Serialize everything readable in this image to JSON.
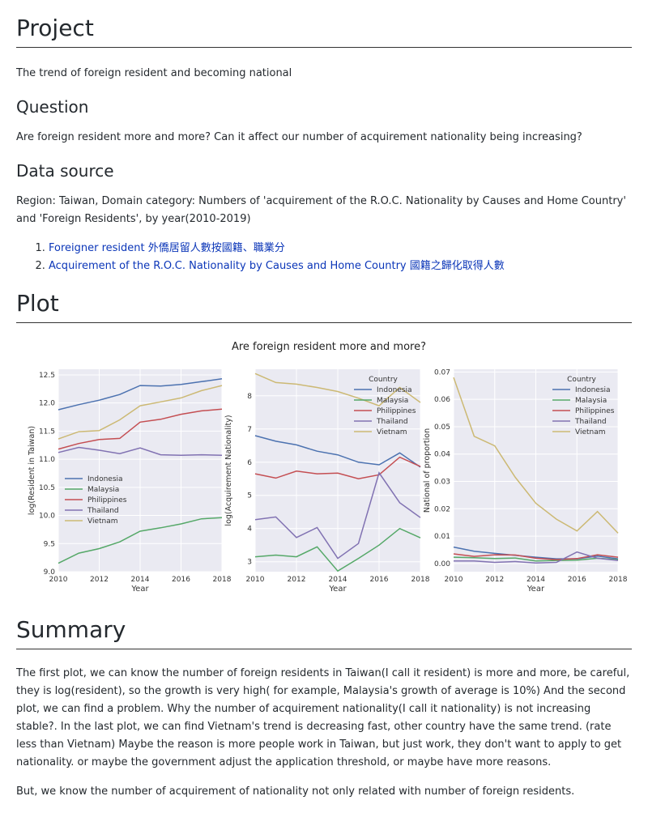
{
  "project": {
    "heading": "Project",
    "description": "The trend of foreign resident and becoming national"
  },
  "question": {
    "heading": "Question",
    "text": "Are foreign resident more and more? Can it affect our number of acquirement nationality being increasing?"
  },
  "data_source": {
    "heading": "Data source",
    "text": "Region: Taiwan, Domain category: Numbers of 'acquirement of the R.O.C. Nationality by Causes and Home Country' and 'Foreign Residents', by year(2010-2019)",
    "links": [
      {
        "label": "Foreigner resident 外僑居留人數按國籍、職業分"
      },
      {
        "label": "Acquirement of the R.O.C. Nationality by Causes and Home Country 國籍之歸化取得人數"
      }
    ]
  },
  "plot": {
    "heading": "Plot",
    "suptitle": "Are foreign resident more and more?"
  },
  "summary": {
    "heading": "Summary",
    "paragraph1": "The first plot, we can know the number of foreign residents in Taiwan(I call it resident) is more and more, be careful, they is log(resident), so the growth is very high( for example, Malaysia's growth of average is 10%) And the second plot, we can find a problem. Why the number of acquirement nationality(I call it nationality) is not increasing stable?. In the last plot, we can find Vietnam's trend is decreasing fast, other country have the same trend. (rate less than Vietnam) Maybe the reason is more people work in Taiwan, but just work, they don't want to apply to get nationality. or maybe the government adjust the application threshold, or maybe have more reasons.",
    "paragraph2": "But, we know the number of acquirement of nationality not only related with number of foreign residents."
  },
  "colors": {
    "Indonesia": "#4c72b0",
    "Malaysia": "#55a868",
    "Philippines": "#c44e52",
    "Thailand": "#8172b2",
    "Vietnam": "#ccb974",
    "plot_bg": "#eaeaf2"
  },
  "chart_data": [
    {
      "type": "line",
      "xlabel": "Year",
      "ylabel": "log(Resident in Taiwan)",
      "xlim": [
        2010,
        2018
      ],
      "ylim": [
        9.0,
        12.6
      ],
      "xticks": [
        "2010",
        "2012",
        "2014",
        "2016",
        "2018"
      ],
      "yticks": [
        "9.0",
        "9.5",
        "10.0",
        "10.5",
        "11.0",
        "11.5",
        "12.0",
        "12.5"
      ],
      "legend_title": "",
      "legend_position": "lower-left",
      "x": [
        2010,
        2011,
        2012,
        2013,
        2014,
        2015,
        2016,
        2017,
        2018
      ],
      "series": [
        {
          "name": "Indonesia",
          "values": [
            11.88,
            11.97,
            12.05,
            12.15,
            12.31,
            12.3,
            12.33,
            12.38,
            12.43
          ]
        },
        {
          "name": "Malaysia",
          "values": [
            9.15,
            9.33,
            9.41,
            9.53,
            9.72,
            9.78,
            9.85,
            9.94,
            9.96
          ]
        },
        {
          "name": "Philippines",
          "values": [
            11.18,
            11.28,
            11.35,
            11.37,
            11.66,
            11.71,
            11.8,
            11.86,
            11.89
          ]
        },
        {
          "name": "Thailand",
          "values": [
            11.12,
            11.21,
            11.16,
            11.1,
            11.2,
            11.08,
            11.07,
            11.08,
            11.07
          ]
        },
        {
          "name": "Vietnam",
          "values": [
            11.36,
            11.49,
            11.51,
            11.7,
            11.95,
            12.02,
            12.09,
            12.22,
            12.31
          ]
        }
      ]
    },
    {
      "type": "line",
      "xlabel": "Year",
      "ylabel": "log(Acquirement Nationality)",
      "xlim": [
        2010,
        2018
      ],
      "ylim": [
        2.7,
        8.8
      ],
      "xticks": [
        "2010",
        "2012",
        "2014",
        "2016",
        "2018"
      ],
      "yticks": [
        "3",
        "4",
        "5",
        "6",
        "7",
        "8"
      ],
      "legend_title": "Country",
      "legend_position": "top-right",
      "x": [
        2010,
        2011,
        2012,
        2013,
        2014,
        2015,
        2016,
        2017,
        2018
      ],
      "series": [
        {
          "name": "Indonesia",
          "values": [
            6.8,
            6.63,
            6.52,
            6.33,
            6.22,
            6.0,
            5.92,
            6.28,
            5.85
          ]
        },
        {
          "name": "Malaysia",
          "values": [
            3.15,
            3.2,
            3.15,
            3.45,
            2.72,
            3.1,
            3.5,
            4.0,
            3.72
          ]
        },
        {
          "name": "Philippines",
          "values": [
            5.65,
            5.52,
            5.73,
            5.65,
            5.67,
            5.5,
            5.62,
            6.15,
            5.87
          ]
        },
        {
          "name": "Thailand",
          "values": [
            4.27,
            4.35,
            3.73,
            4.03,
            3.1,
            3.55,
            5.68,
            4.78,
            4.33
          ]
        },
        {
          "name": "Vietnam",
          "values": [
            8.67,
            8.4,
            8.35,
            8.25,
            8.13,
            7.93,
            7.7,
            8.25,
            7.8
          ]
        }
      ]
    },
    {
      "type": "line",
      "xlabel": "Year",
      "ylabel": "National of proportion",
      "xlim": [
        2010,
        2018
      ],
      "ylim": [
        -0.003,
        0.071
      ],
      "xticks": [
        "2010",
        "2012",
        "2014",
        "2016",
        "2018"
      ],
      "yticks": [
        "0.00",
        "0.01",
        "0.02",
        "0.03",
        "0.04",
        "0.05",
        "0.06",
        "0.07"
      ],
      "legend_title": "Country",
      "legend_position": "top-right",
      "x": [
        2010,
        2011,
        2012,
        2013,
        2014,
        2015,
        2016,
        2017,
        2018
      ],
      "series": [
        {
          "name": "Indonesia",
          "values": [
            0.006,
            0.0045,
            0.0037,
            0.003,
            0.0023,
            0.0017,
            0.0017,
            0.0027,
            0.0017
          ]
        },
        {
          "name": "Malaysia",
          "values": [
            0.0023,
            0.0021,
            0.0018,
            0.002,
            0.0009,
            0.0011,
            0.0012,
            0.0019,
            0.0014
          ]
        },
        {
          "name": "Philippines",
          "values": [
            0.0035,
            0.0026,
            0.0032,
            0.0031,
            0.0019,
            0.0014,
            0.0018,
            0.0032,
            0.0023
          ]
        },
        {
          "name": "Thailand",
          "values": [
            0.0009,
            0.0009,
            0.0004,
            0.0007,
            0.0002,
            0.0004,
            0.0042,
            0.0019,
            0.0011
          ]
        },
        {
          "name": "Vietnam",
          "values": [
            0.068,
            0.0465,
            0.043,
            0.0315,
            0.022,
            0.0162,
            0.0119,
            0.019,
            0.0111
          ]
        }
      ]
    }
  ]
}
